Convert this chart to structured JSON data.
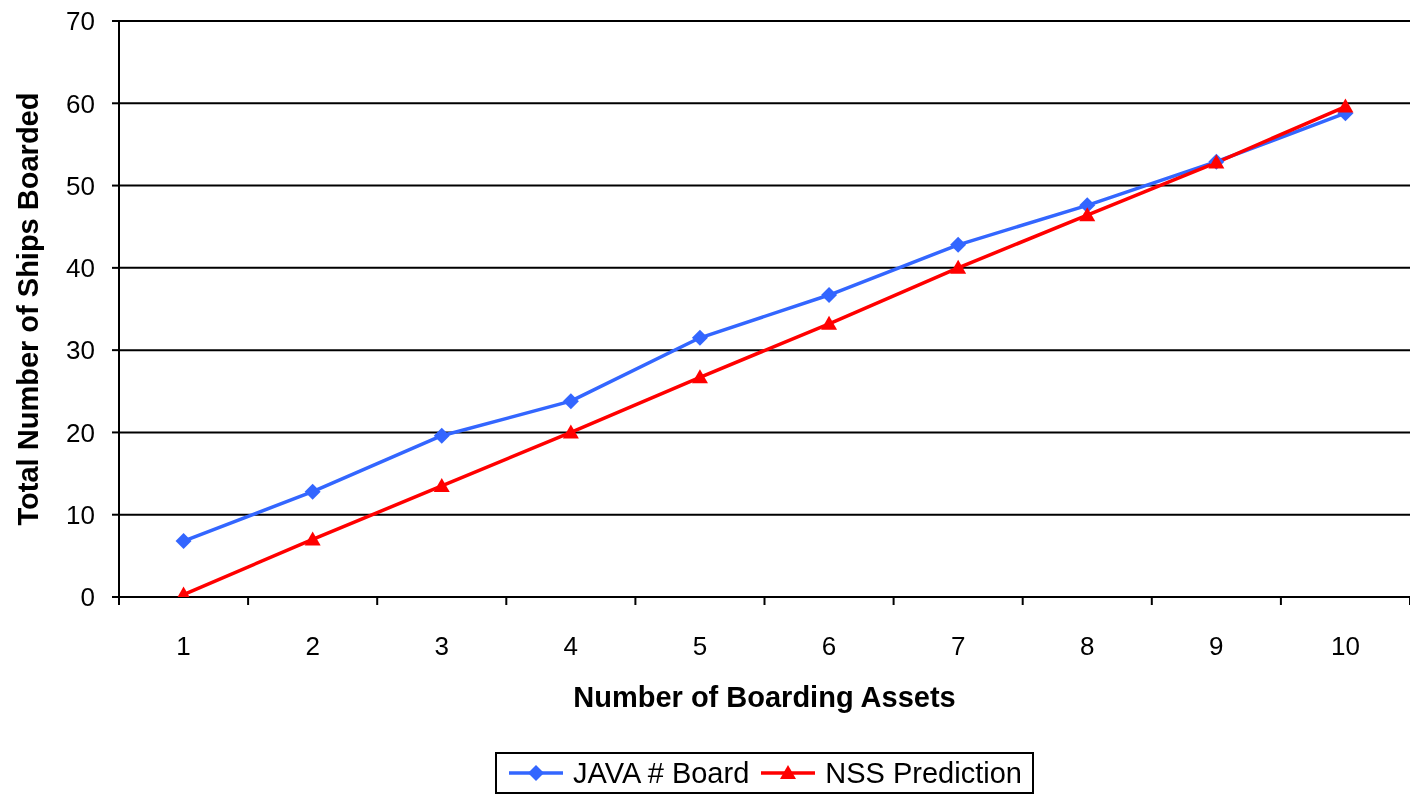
{
  "chart_data": {
    "type": "line",
    "xlabel": "Number of Boarding Assets",
    "ylabel": "Total Number of Ships Boarded",
    "categories": [
      "1",
      "2",
      "3",
      "4",
      "5",
      "6",
      "7",
      "8",
      "9",
      "10"
    ],
    "series": [
      {
        "name": "JAVA # Board",
        "color": "#3366ff",
        "marker": "diamond",
        "values": [
          6.8,
          12.8,
          19.6,
          23.8,
          31.5,
          36.7,
          42.8,
          47.6,
          52.9,
          58.8
        ]
      },
      {
        "name": "NSS Prediction",
        "color": "#ff0000",
        "marker": "triangle",
        "values": [
          0.3,
          7,
          13.5,
          20,
          26.7,
          33.2,
          40,
          46.4,
          52.8,
          59.6
        ]
      }
    ],
    "ylim": [
      0,
      70
    ],
    "yticks": [
      0,
      10,
      20,
      30,
      40,
      50,
      60,
      70
    ],
    "grid": "y",
    "legend": "bottom",
    "line_style": "solid"
  }
}
